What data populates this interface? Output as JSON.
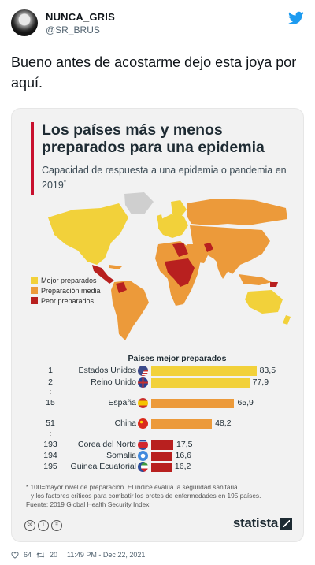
{
  "tweet": {
    "display_name": "NUNCA_GRIS",
    "handle": "@SR_BRUS",
    "text": "Bueno antes de acostarme dejo esta joya por aquí.",
    "likes": "64",
    "retweets": "20",
    "timestamp": "11:49 PM - Dec 22, 2021"
  },
  "infographic": {
    "title": "Los países más y menos preparados para una epidemia",
    "subtitle": "Capacidad de respuesta a una epidemia o pandemia en 2019",
    "subtitle_mark": "*",
    "legend": [
      {
        "label": "Mejor preparados",
        "color": "#f2d13a"
      },
      {
        "label": "Preparación media",
        "color": "#ec9a3a"
      },
      {
        "label": "Peor preparados",
        "color": "#b8201f"
      }
    ],
    "section_title": "Países mejor preparados",
    "footnote_1": "* 100=mayor nivel de preparación. El índice evalúa la seguridad sanitaria",
    "footnote_2": "y los factores críticos para combatir los brotes de enfermedades en 195 países.",
    "source": "Fuente: 2019 Global Health Security Index",
    "cc_labels": [
      "cc",
      "i",
      "="
    ],
    "brand": "statista"
  },
  "chart_data": {
    "type": "bar",
    "orientation": "horizontal",
    "title": "Países mejor preparados",
    "xlim": [
      0,
      100
    ],
    "categories": [
      "Estados Unidos",
      "Reino Unido",
      "España",
      "China",
      "Corea del Norte",
      "Somalia",
      "Guinea Ecuatorial"
    ],
    "ranks": [
      "1",
      "2",
      "15",
      "51",
      "193",
      "194",
      "195"
    ],
    "values": [
      83.5,
      77.9,
      65.9,
      48.2,
      17.5,
      16.6,
      16.2
    ],
    "value_labels": [
      "83,5",
      "77,9",
      "65,9",
      "48,2",
      "17,5",
      "16,6",
      "16,2"
    ],
    "colors": [
      "#f2d13a",
      "#f2d13a",
      "#ec9a3a",
      "#ec9a3a",
      "#b8201f",
      "#b8201f",
      "#b8201f"
    ]
  }
}
